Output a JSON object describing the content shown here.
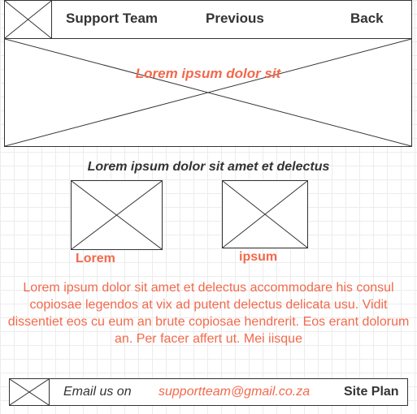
{
  "nav": {
    "support_team": "Support Team",
    "previous": "Previous",
    "back": "Back"
  },
  "hero": {
    "text": "Lorem ipsum dolor sit"
  },
  "section": {
    "subtitle": "Lorem ipsum dolor sit amet et delectus",
    "caption_left": "Lorem",
    "caption_right": "ipsum",
    "paragraph": "Lorem ipsum dolor sit amet et delectus accommodare his consul copiosae legendos at vix ad putent delectus delicata usu. Vidit dissentiet eos cu eum an brute copiosae hendrerit. Eos erant dolorum an. Per facer affert ut. Mei iisque"
  },
  "footer": {
    "email_label": "Email us on",
    "email": "supportteam@gmail.co.za",
    "site_plan": "Site Plan"
  },
  "colors": {
    "accent": "#f2694c",
    "text": "#333333",
    "border": "#333333"
  },
  "icons": {
    "placeholder": "image-placeholder-icon"
  }
}
